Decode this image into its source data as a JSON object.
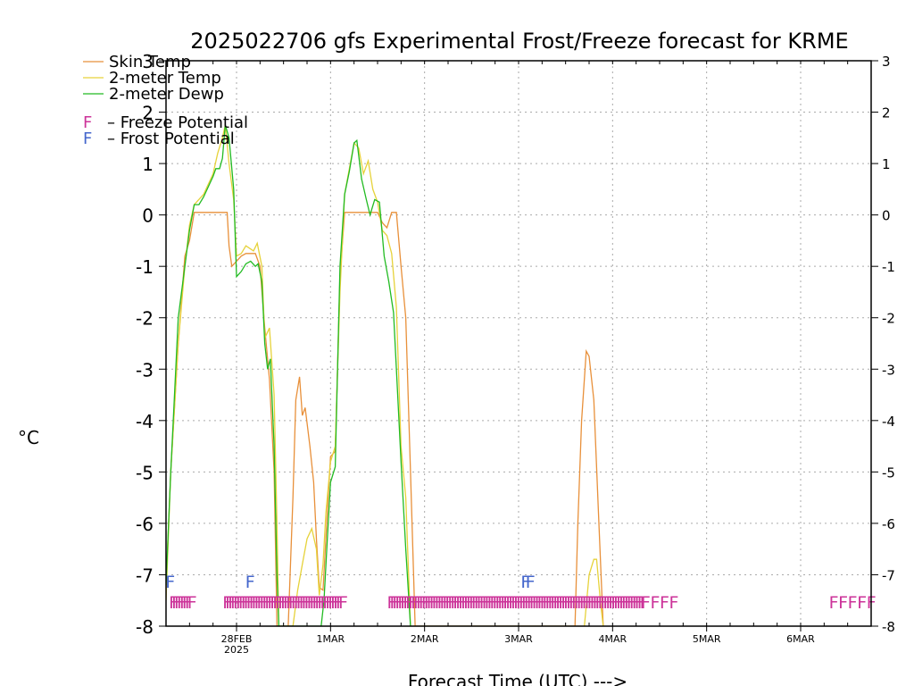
{
  "chart_data": {
    "type": "line",
    "title": "2025022706 gfs Experimental Frost/Freeze forecast for KRME",
    "ylabel": "°C",
    "xlabel": "Forecast Time (UTC) --->",
    "ylim": [
      -8,
      3
    ],
    "yticks": [
      -8,
      -7,
      -6,
      -5,
      -4,
      -3,
      -2,
      -1,
      0,
      1,
      2,
      3
    ],
    "xlim": [
      -0.75,
      6.75
    ],
    "xticks": [
      {
        "x": 0,
        "label": "28FEB",
        "sublabel": "2025"
      },
      {
        "x": 1,
        "label": "1MAR",
        "sublabel": ""
      },
      {
        "x": 2,
        "label": "2MAR",
        "sublabel": ""
      },
      {
        "x": 3,
        "label": "3MAR",
        "sublabel": ""
      },
      {
        "x": 4,
        "label": "4MAR",
        "sublabel": ""
      },
      {
        "x": 5,
        "label": "5MAR",
        "sublabel": ""
      },
      {
        "x": 6,
        "label": "6MAR",
        "sublabel": ""
      }
    ],
    "grid": true,
    "legend_position": "top-left",
    "series": [
      {
        "name": "Skin Temp",
        "color": "#e8903a",
        "points": [
          [
            -0.75,
            -7.2
          ],
          [
            -0.7,
            -5.0
          ],
          [
            -0.62,
            -2.5
          ],
          [
            -0.55,
            -0.8
          ],
          [
            -0.5,
            -0.5
          ],
          [
            -0.45,
            0.05
          ],
          [
            -0.3,
            0.05
          ],
          [
            -0.1,
            0.05
          ],
          [
            -0.08,
            -0.6
          ],
          [
            -0.05,
            -1.0
          ],
          [
            0.0,
            -0.9
          ],
          [
            0.05,
            -0.8
          ],
          [
            0.1,
            -0.75
          ],
          [
            0.2,
            -0.75
          ],
          [
            0.25,
            -1.0
          ],
          [
            0.3,
            -2.2
          ],
          [
            0.35,
            -3.2
          ],
          [
            0.4,
            -5.0
          ],
          [
            0.43,
            -8.0
          ],
          [
            0.55,
            -8.0
          ],
          [
            0.6,
            -5.5
          ],
          [
            0.63,
            -3.6
          ],
          [
            0.67,
            -3.15
          ],
          [
            0.7,
            -3.9
          ],
          [
            0.73,
            -3.75
          ],
          [
            0.78,
            -4.5
          ],
          [
            0.82,
            -5.2
          ],
          [
            0.85,
            -6.3
          ],
          [
            0.88,
            -7.25
          ],
          [
            0.92,
            -7.3
          ],
          [
            0.95,
            -6.3
          ],
          [
            1.0,
            -4.7
          ],
          [
            1.05,
            -4.6
          ],
          [
            1.1,
            -1.2
          ],
          [
            1.15,
            0.05
          ],
          [
            1.3,
            0.05
          ],
          [
            1.45,
            0.05
          ],
          [
            1.5,
            0.05
          ],
          [
            1.55,
            -0.15
          ],
          [
            1.6,
            -0.25
          ],
          [
            1.65,
            0.05
          ],
          [
            1.7,
            0.05
          ],
          [
            1.75,
            -1.0
          ],
          [
            1.8,
            -2.0
          ],
          [
            1.85,
            -5.0
          ],
          [
            1.9,
            -8.0
          ],
          [
            3.6,
            -8.0
          ],
          [
            3.63,
            -6.0
          ],
          [
            3.67,
            -4.0
          ],
          [
            3.72,
            -2.65
          ],
          [
            3.75,
            -2.75
          ],
          [
            3.8,
            -3.6
          ],
          [
            3.85,
            -5.8
          ],
          [
            3.9,
            -8.0
          ]
        ]
      },
      {
        "name": "2-meter Temp",
        "color": "#e6d23a",
        "points": [
          [
            -0.75,
            -7.5
          ],
          [
            -0.7,
            -5.0
          ],
          [
            -0.62,
            -2.5
          ],
          [
            -0.55,
            -1.0
          ],
          [
            -0.5,
            -0.2
          ],
          [
            -0.45,
            0.2
          ],
          [
            -0.35,
            0.4
          ],
          [
            -0.25,
            0.8
          ],
          [
            -0.2,
            1.2
          ],
          [
            -0.15,
            1.5
          ],
          [
            -0.12,
            1.75
          ],
          [
            -0.08,
            1.0
          ],
          [
            -0.03,
            0.3
          ],
          [
            0.0,
            -0.8
          ],
          [
            0.05,
            -0.75
          ],
          [
            0.1,
            -0.6
          ],
          [
            0.18,
            -0.7
          ],
          [
            0.22,
            -0.55
          ],
          [
            0.27,
            -1.0
          ],
          [
            0.3,
            -2.4
          ],
          [
            0.35,
            -2.2
          ],
          [
            0.4,
            -3.5
          ],
          [
            0.43,
            -6.0
          ],
          [
            0.45,
            -8.0
          ],
          [
            0.6,
            -8.0
          ],
          [
            0.65,
            -7.3
          ],
          [
            0.7,
            -6.8
          ],
          [
            0.75,
            -6.3
          ],
          [
            0.8,
            -6.1
          ],
          [
            0.85,
            -6.5
          ],
          [
            0.88,
            -7.4
          ],
          [
            0.92,
            -6.8
          ],
          [
            0.95,
            -5.8
          ],
          [
            1.0,
            -4.8
          ],
          [
            1.05,
            -4.5
          ],
          [
            1.1,
            -1.5
          ],
          [
            1.15,
            0.4
          ],
          [
            1.2,
            0.9
          ],
          [
            1.25,
            1.4
          ],
          [
            1.3,
            1.3
          ],
          [
            1.35,
            0.8
          ],
          [
            1.4,
            1.05
          ],
          [
            1.45,
            0.5
          ],
          [
            1.5,
            0.25
          ],
          [
            1.55,
            -0.3
          ],
          [
            1.6,
            -0.4
          ],
          [
            1.65,
            -0.75
          ],
          [
            1.7,
            -1.8
          ],
          [
            1.75,
            -4.5
          ],
          [
            1.8,
            -5.5
          ],
          [
            1.85,
            -8.0
          ],
          [
            3.7,
            -8.0
          ],
          [
            3.75,
            -7.0
          ],
          [
            3.8,
            -6.7
          ],
          [
            3.83,
            -6.7
          ],
          [
            3.87,
            -7.5
          ],
          [
            3.9,
            -8.0
          ]
        ]
      },
      {
        "name": "2-meter Dewp",
        "color": "#22bb22",
        "points": [
          [
            -0.75,
            -7.2
          ],
          [
            -0.7,
            -5.0
          ],
          [
            -0.62,
            -2.0
          ],
          [
            -0.55,
            -1.0
          ],
          [
            -0.5,
            -0.3
          ],
          [
            -0.45,
            0.2
          ],
          [
            -0.4,
            0.2
          ],
          [
            -0.35,
            0.35
          ],
          [
            -0.25,
            0.75
          ],
          [
            -0.22,
            0.9
          ],
          [
            -0.18,
            0.9
          ],
          [
            -0.15,
            1.1
          ],
          [
            -0.12,
            1.75
          ],
          [
            -0.08,
            1.5
          ],
          [
            -0.03,
            0.5
          ],
          [
            0.0,
            -1.2
          ],
          [
            0.05,
            -1.1
          ],
          [
            0.1,
            -0.95
          ],
          [
            0.15,
            -0.9
          ],
          [
            0.2,
            -1.0
          ],
          [
            0.23,
            -0.95
          ],
          [
            0.27,
            -1.3
          ],
          [
            0.3,
            -2.5
          ],
          [
            0.33,
            -3.0
          ],
          [
            0.36,
            -2.8
          ],
          [
            0.4,
            -4.5
          ],
          [
            0.43,
            -7.0
          ],
          [
            0.45,
            -8.0
          ],
          [
            0.9,
            -8.0
          ],
          [
            0.93,
            -7.5
          ],
          [
            0.96,
            -6.5
          ],
          [
            1.0,
            -5.2
          ],
          [
            1.05,
            -4.9
          ],
          [
            1.1,
            -1.0
          ],
          [
            1.15,
            0.4
          ],
          [
            1.2,
            0.85
          ],
          [
            1.25,
            1.4
          ],
          [
            1.28,
            1.45
          ],
          [
            1.33,
            0.7
          ],
          [
            1.38,
            0.3
          ],
          [
            1.42,
            0.0
          ],
          [
            1.47,
            0.3
          ],
          [
            1.52,
            0.25
          ],
          [
            1.57,
            -0.8
          ],
          [
            1.62,
            -1.3
          ],
          [
            1.67,
            -1.9
          ],
          [
            1.7,
            -3.0
          ],
          [
            1.75,
            -4.8
          ],
          [
            1.8,
            -6.5
          ],
          [
            1.85,
            -8.0
          ]
        ]
      }
    ],
    "markers": {
      "legend": [
        {
          "glyph": "F",
          "text": "– Freeze Potential",
          "color": "#cc3399"
        },
        {
          "glyph": "F",
          "text": "– Frost Potential",
          "color": "#4466cc"
        }
      ],
      "frost_marks": [
        {
          "x": -0.7,
          "label": "F"
        },
        {
          "x": 0.15,
          "label": "F"
        },
        {
          "x": 3.08,
          "label": "F"
        },
        {
          "x": 3.13,
          "label": "F"
        }
      ],
      "freeze_runs": [
        {
          "start": -0.72,
          "end": -0.5,
          "step": 0.028
        },
        {
          "start": -0.15,
          "end": 1.1,
          "step": 0.028
        },
        {
          "start": 1.6,
          "end": 4.3,
          "step": 0.028
        },
        {
          "start": 4.3,
          "end": 4.6,
          "step": 0.1
        },
        {
          "start": 6.3,
          "end": 6.7,
          "step": 0.1
        }
      ]
    }
  }
}
